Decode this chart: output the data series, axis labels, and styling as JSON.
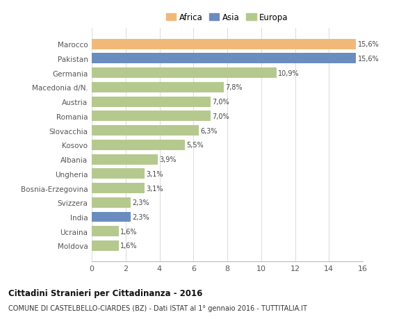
{
  "categories": [
    "Moldova",
    "Ucraina",
    "India",
    "Svizzera",
    "Bosnia-Erzegovina",
    "Ungheria",
    "Albania",
    "Kosovo",
    "Slovacchia",
    "Romania",
    "Austria",
    "Macedonia d/N.",
    "Germania",
    "Pakistan",
    "Marocco"
  ],
  "values": [
    1.6,
    1.6,
    2.3,
    2.3,
    3.1,
    3.1,
    3.9,
    5.5,
    6.3,
    7.0,
    7.0,
    7.8,
    10.9,
    15.6,
    15.6
  ],
  "colors": [
    "#b5c98e",
    "#b5c98e",
    "#6b8cbf",
    "#b5c98e",
    "#b5c98e",
    "#b5c98e",
    "#b5c98e",
    "#b5c98e",
    "#b5c98e",
    "#b5c98e",
    "#b5c98e",
    "#b5c98e",
    "#b5c98e",
    "#6b8cbf",
    "#f0b97a"
  ],
  "labels": [
    "1,6%",
    "1,6%",
    "2,3%",
    "2,3%",
    "3,1%",
    "3,1%",
    "3,9%",
    "5,5%",
    "6,3%",
    "7,0%",
    "7,0%",
    "7,8%",
    "10,9%",
    "15,6%",
    "15,6%"
  ],
  "legend": [
    {
      "label": "Africa",
      "color": "#f0b97a"
    },
    {
      "label": "Asia",
      "color": "#6b8cbf"
    },
    {
      "label": "Europa",
      "color": "#b5c98e"
    }
  ],
  "xlim": [
    0,
    16
  ],
  "xticks": [
    0,
    2,
    4,
    6,
    8,
    10,
    12,
    14,
    16
  ],
  "title": "Cittadini Stranieri per Cittadinanza - 2016",
  "subtitle": "COMUNE DI CASTELBELLO-CIARDES (BZ) - Dati ISTAT al 1° gennaio 2016 - TUTTITALIA.IT",
  "background_color": "#ffffff",
  "bar_height": 0.72,
  "grid_color": "#dddddd"
}
